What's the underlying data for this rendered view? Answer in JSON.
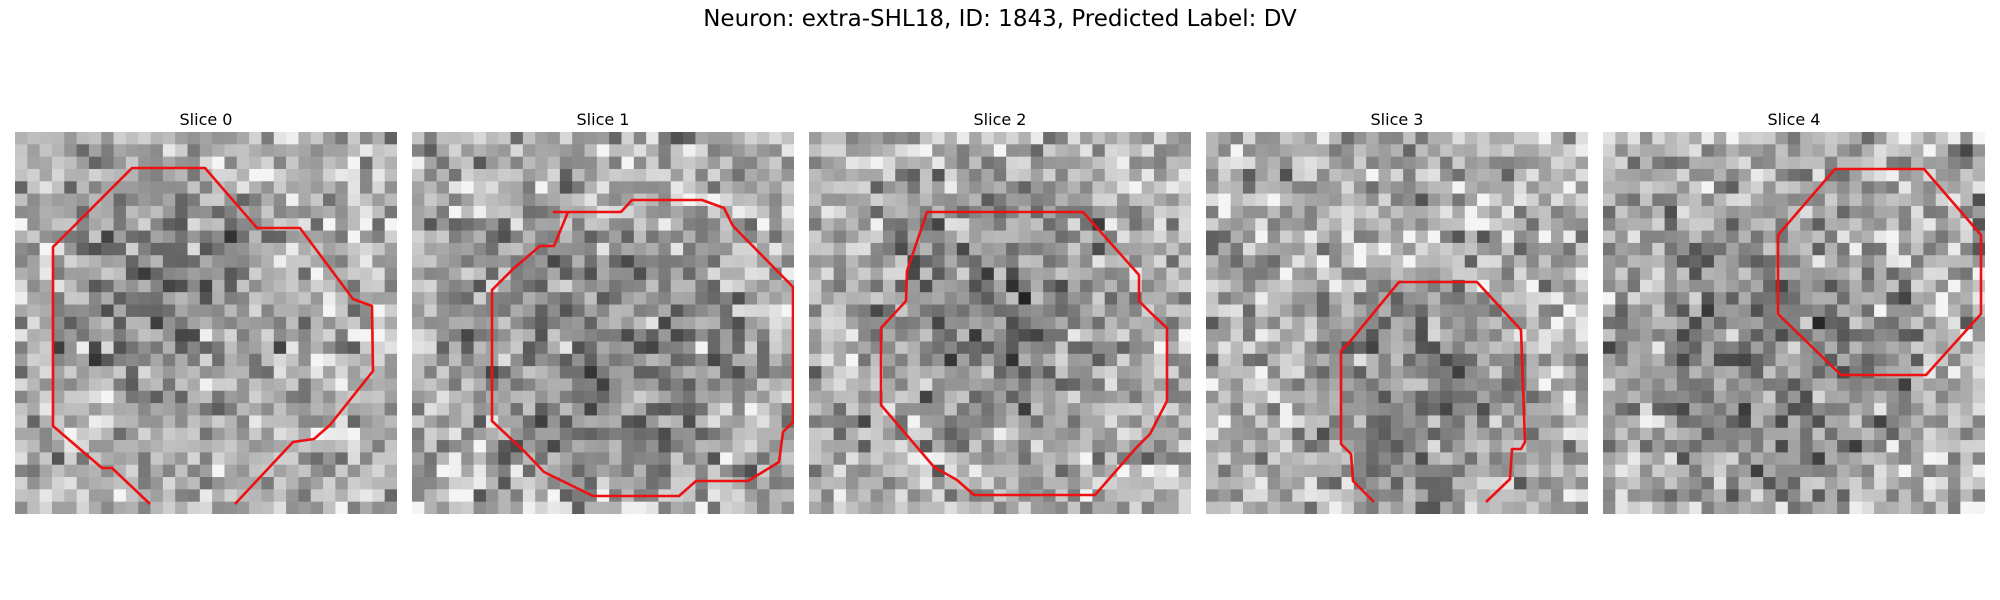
{
  "figure": {
    "title": "Neuron: extra-SHL18, ID: 1843, Predicted Label: DV"
  },
  "panels": [
    {
      "title": "Slice 0",
      "seed": 11,
      "dark_center": [
        0.4,
        0.42
      ],
      "dark_radius": 0.33,
      "contour_color": "#ee1111"
    },
    {
      "title": "Slice 1",
      "seed": 27,
      "dark_center": [
        0.5,
        0.55
      ],
      "dark_radius": 0.42,
      "contour_color": "#ee1111"
    },
    {
      "title": "Slice 2",
      "seed": 43,
      "dark_center": [
        0.5,
        0.45
      ],
      "dark_radius": 0.38,
      "contour_color": "#ee1111"
    },
    {
      "title": "Slice 3",
      "seed": 59,
      "dark_center": [
        0.55,
        0.7
      ],
      "dark_radius": 0.32,
      "contour_color": "#ee1111"
    },
    {
      "title": "Slice 4",
      "seed": 71,
      "dark_center": [
        0.4,
        0.6
      ],
      "dark_radius": 0.45,
      "contour_color": "#ee1111"
    }
  ],
  "colors": {
    "contour": "#ee1111",
    "background": "#ffffff"
  }
}
